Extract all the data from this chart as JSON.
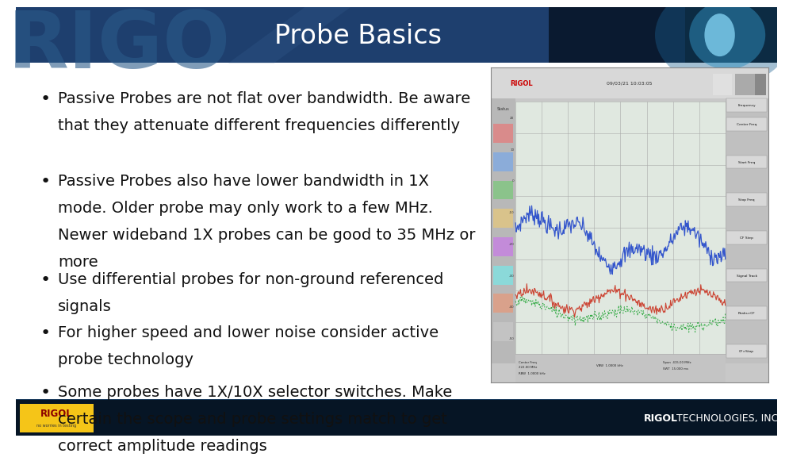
{
  "title": "Probe Basics",
  "title_fontsize": 24,
  "title_color": "#ffffff",
  "background_color": "#ffffff",
  "header_gradient_left": "#1a3a5c",
  "header_gradient_right": "#000000",
  "footer_bg": "#061525",
  "bullet_points": [
    [
      "•",
      " Passive Probes are not flat over bandwidth. Be aware\n  that they attenuate different frequencies differently"
    ],
    [
      "•",
      " Passive Probes also have lower bandwidth in 1X\n  mode. Older probe may only work to a few MHz.\n  Newer wideband 1X probes can be good to 35 MHz or\n  more"
    ],
    [
      "•",
      " Use differential probes for non-ground referenced\n  signals"
    ],
    [
      "•",
      " For higher speed and lower noise consider active\n  probe technology"
    ],
    [
      "•",
      " Some probes have 1X/10X selector switches. Make\n  certain the scope and probe settings match to get\n  correct amplitude readings"
    ]
  ],
  "bullet_color": "#111111",
  "bullet_fontsize": 14,
  "footer_fontsize": 9,
  "rigol_logo_bg": "#f5c518",
  "scope_bg": "#d8d8d8",
  "scope_plot_bg": "#e4e4e4",
  "scope_header_bg": "#d0d0d0",
  "scope_sidebar_bg": "#b8b8c0",
  "scope_right_bg": "#c8c8d0"
}
